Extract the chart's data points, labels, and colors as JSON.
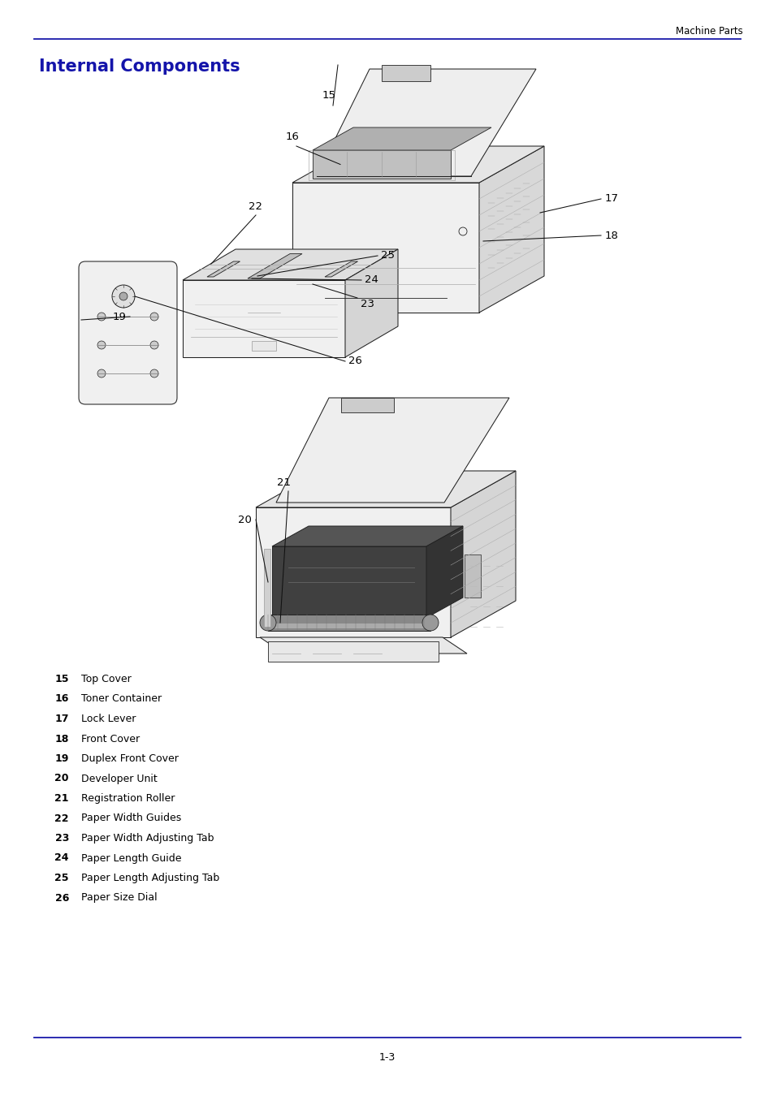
{
  "page_header_right": "Machine Parts",
  "header_line_color": "#1a1aaa",
  "title": "Internal Components",
  "title_color": "#1414aa",
  "title_fontsize": 15,
  "components": [
    {
      "num": "15",
      "desc": "Top Cover"
    },
    {
      "num": "16",
      "desc": "Toner Container"
    },
    {
      "num": "17",
      "desc": "Lock Lever"
    },
    {
      "num": "18",
      "desc": "Front Cover"
    },
    {
      "num": "19",
      "desc": "Duplex Front Cover"
    },
    {
      "num": "20",
      "desc": "Developer Unit"
    },
    {
      "num": "21",
      "desc": "Registration Roller"
    },
    {
      "num": "22",
      "desc": "Paper Width Guides"
    },
    {
      "num": "23",
      "desc": "Paper Width Adjusting Tab"
    },
    {
      "num": "24",
      "desc": "Paper Length Guide"
    },
    {
      "num": "25",
      "desc": "Paper Length Adjusting Tab"
    },
    {
      "num": "26",
      "desc": "Paper Size Dial"
    }
  ],
  "footer_line_color": "#1a1aaa",
  "page_number": "1-3",
  "bg_color": "#ffffff",
  "text_color": "#000000",
  "line_color": "#222222",
  "gray1": "#bbbbbb",
  "gray2": "#888888",
  "gray3": "#555555"
}
